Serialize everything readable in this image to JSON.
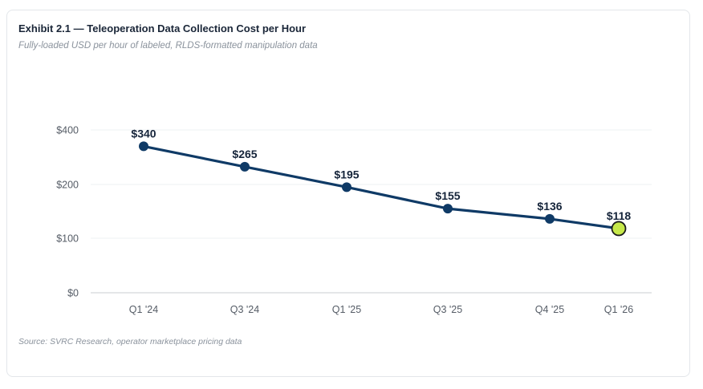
{
  "title": "Exhibit 2.1 — Teleoperation Data Collection Cost per Hour",
  "subtitle": "Fully-loaded USD per hour of labeled, RLDS-formatted manipulation data",
  "source": "Source: SVRC Research, operator marketplace pricing data",
  "colors": {
    "line": "#0f3a66",
    "highlight_fill": "#c6e84a",
    "highlight_stroke": "#1a1a1a",
    "highlight_label": "#8aa82a",
    "grid": "#eef0f3",
    "axis": "#c8ccd2"
  },
  "chart_data": {
    "type": "line",
    "title": "Exhibit 2.1 — Teleoperation Data Collection Cost per Hour",
    "subtitle": "Fully-loaded USD per hour of labeled, RLDS-formatted manipulation data",
    "xlabel": "",
    "ylabel": "",
    "categories": [
      "Q1 '24",
      "Q3 '24",
      "Q1 '25",
      "Q3 '25",
      "Q4 '25",
      "Q1 '26"
    ],
    "values": [
      340,
      265,
      195,
      155,
      136,
      118
    ],
    "data_labels": [
      "$340",
      "$265",
      "$195",
      "$155",
      "$136",
      "$118"
    ],
    "y_ticks": [
      0,
      100,
      200,
      400
    ],
    "y_tick_labels": [
      "$0",
      "$100",
      "$200",
      "$400"
    ],
    "highlight_index": 5,
    "grid": true,
    "legend": "none"
  }
}
